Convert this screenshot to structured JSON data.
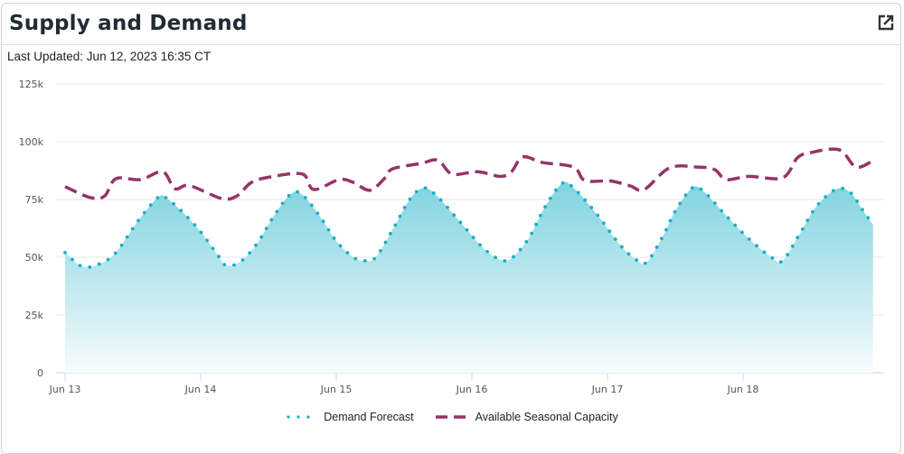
{
  "header": {
    "title": "Supply and Demand",
    "expand_icon": "external-link-icon"
  },
  "last_updated": "Last Updated: Jun 12, 2023 16:35 CT",
  "chart_data": {
    "type": "area",
    "title": "Supply and Demand",
    "xlabel": "",
    "ylabel": "",
    "x_unit": "hours since Jun 13 00:00",
    "xlim": [
      0,
      143.5
    ],
    "ylim": [
      0,
      125000
    ],
    "y_ticks": [
      {
        "v": 0,
        "label": "0"
      },
      {
        "v": 25000,
        "label": "25k"
      },
      {
        "v": 50000,
        "label": "50k"
      },
      {
        "v": 75000,
        "label": "75k"
      },
      {
        "v": 100000,
        "label": "100k"
      },
      {
        "v": 125000,
        "label": "125k"
      }
    ],
    "x_ticks": [
      {
        "v": 0,
        "label": "Jun 13"
      },
      {
        "v": 24,
        "label": "Jun 14"
      },
      {
        "v": 48,
        "label": "Jun 15"
      },
      {
        "v": 72,
        "label": "Jun 16"
      },
      {
        "v": 96,
        "label": "Jun 17"
      },
      {
        "v": 120,
        "label": "Jun 18"
      }
    ],
    "grid": true,
    "legend_position": "bottom-center",
    "series": [
      {
        "name": "Demand Forecast",
        "color": "#19aec4",
        "style": "dotted-area",
        "points": [
          [
            0,
            52
          ],
          [
            3,
            46
          ],
          [
            6,
            47
          ],
          [
            9,
            52
          ],
          [
            13,
            66
          ],
          [
            16.5,
            76
          ],
          [
            18,
            75.5
          ],
          [
            21,
            69
          ],
          [
            24,
            61
          ],
          [
            27,
            51
          ],
          [
            28.5,
            46.5
          ],
          [
            31,
            48
          ],
          [
            34,
            56
          ],
          [
            37,
            68
          ],
          [
            40,
            77.5
          ],
          [
            42,
            77
          ],
          [
            45,
            68
          ],
          [
            48,
            57
          ],
          [
            51,
            50
          ],
          [
            53,
            48.5
          ],
          [
            55,
            50
          ],
          [
            58,
            62
          ],
          [
            61,
            75
          ],
          [
            63.5,
            80
          ],
          [
            66,
            76
          ],
          [
            70,
            65
          ],
          [
            74,
            54
          ],
          [
            77,
            49
          ],
          [
            79,
            49.5
          ],
          [
            82,
            58
          ],
          [
            85,
            72
          ],
          [
            88,
            82
          ],
          [
            90,
            80
          ],
          [
            94,
            69
          ],
          [
            98,
            56
          ],
          [
            101,
            49
          ],
          [
            103,
            48
          ],
          [
            106,
            60
          ],
          [
            108,
            70
          ],
          [
            111,
            80
          ],
          [
            113,
            78.5
          ],
          [
            117,
            68
          ],
          [
            121,
            58
          ],
          [
            125,
            50
          ],
          [
            127,
            48.5
          ],
          [
            130,
            60
          ],
          [
            133,
            72
          ],
          [
            136.5,
            79.5
          ],
          [
            139,
            78
          ],
          [
            141,
            71
          ],
          [
            143,
            64
          ]
        ]
      },
      {
        "name": "Available Seasonal Capacity",
        "color": "#963469",
        "style": "dashed",
        "points": [
          [
            0,
            80.5
          ],
          [
            4.5,
            75.8
          ],
          [
            7,
            76.5
          ],
          [
            9,
            84
          ],
          [
            13.3,
            83.6
          ],
          [
            17.3,
            87
          ],
          [
            19.4,
            79.7
          ],
          [
            22,
            81
          ],
          [
            27.7,
            75.4
          ],
          [
            30.4,
            76.5
          ],
          [
            33,
            82.4
          ],
          [
            36.5,
            84.8
          ],
          [
            42,
            86
          ],
          [
            44,
            79.3
          ],
          [
            48.5,
            83.6
          ],
          [
            51,
            82.4
          ],
          [
            54,
            79
          ],
          [
            56.8,
            84.8
          ],
          [
            58,
            88.3
          ],
          [
            63,
            90.6
          ],
          [
            66,
            92
          ],
          [
            68.5,
            86
          ],
          [
            73,
            87
          ],
          [
            77,
            85
          ],
          [
            79,
            87
          ],
          [
            81,
            93.4
          ],
          [
            84.5,
            91
          ],
          [
            90,
            89
          ],
          [
            92,
            83.2
          ],
          [
            96.5,
            83
          ],
          [
            100,
            80.9
          ],
          [
            102.5,
            79.3
          ],
          [
            107,
            88.7
          ],
          [
            112,
            89
          ],
          [
            115,
            87.9
          ],
          [
            117,
            83.6
          ],
          [
            121,
            85
          ],
          [
            127,
            84.4
          ],
          [
            129.6,
            93
          ],
          [
            132,
            95.3
          ],
          [
            137,
            96.5
          ],
          [
            140,
            89
          ],
          [
            143,
            91.8
          ]
        ]
      }
    ],
    "y_scale": 1000
  }
}
